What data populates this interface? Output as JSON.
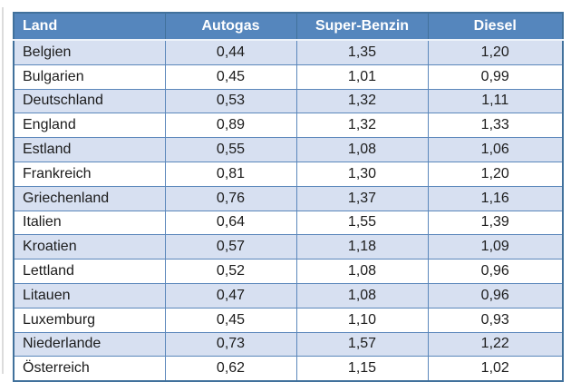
{
  "chart_data": {
    "type": "table",
    "title": "",
    "columns": [
      "Land",
      "Autogas",
      "Super-Benzin",
      "Diesel"
    ],
    "rows": [
      [
        "Belgien",
        "0,44",
        "1,35",
        "1,20"
      ],
      [
        "Bulgarien",
        "0,45",
        "1,01",
        "0,99"
      ],
      [
        "Deutschland",
        "0,53",
        "1,32",
        "1,11"
      ],
      [
        "England",
        "0,89",
        "1,32",
        "1,33"
      ],
      [
        "Estland",
        "0,55",
        "1,08",
        "1,06"
      ],
      [
        "Frankreich",
        "0,81",
        "1,30",
        "1,20"
      ],
      [
        "Griechenland",
        "0,76",
        "1,37",
        "1,16"
      ],
      [
        "Italien",
        "0,64",
        "1,55",
        "1,39"
      ],
      [
        "Kroatien",
        "0,57",
        "1,18",
        "1,09"
      ],
      [
        "Lettland",
        "0,52",
        "1,08",
        "0,96"
      ],
      [
        "Litauen",
        "0,47",
        "1,08",
        "0,96"
      ],
      [
        "Luxemburg",
        "0,45",
        "1,10",
        "0,93"
      ],
      [
        "Niederlande",
        "0,73",
        "1,57",
        "1,22"
      ],
      [
        "Österreich",
        "0,62",
        "1,15",
        "1,02"
      ]
    ],
    "layout": {
      "banding": "alternating rows, first body row shaded",
      "last_row_clipped_at_bottom": true,
      "header_align": [
        "left",
        "center",
        "center",
        "center"
      ]
    }
  },
  "colors": {
    "header_bg": "#5586bd",
    "header_text": "#ffffff",
    "band_row_bg": "#d7e0f1",
    "plain_row_bg": "#ffffff",
    "inner_border": "#5b87bb",
    "outer_border": "#41719c",
    "body_text": "#1c1c1c"
  }
}
